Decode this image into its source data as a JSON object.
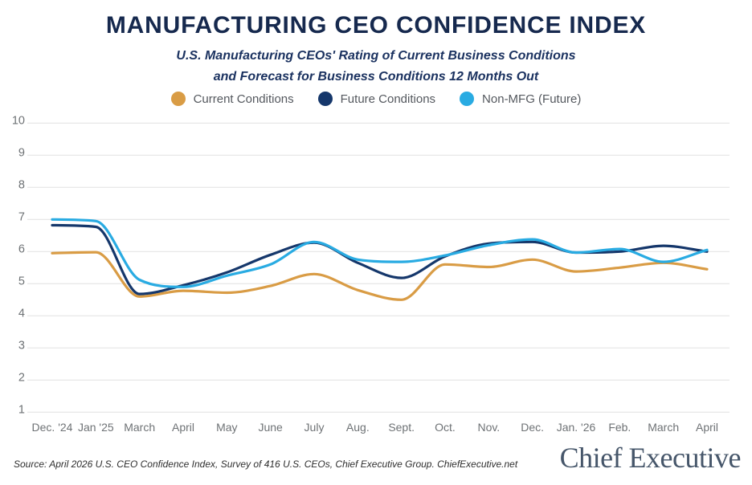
{
  "header": {
    "title": "MANUFACTURING CEO CONFIDENCE INDEX",
    "subtitle_line1": "U.S. Manufacturing CEOs' Rating of Current Business Conditions",
    "subtitle_line2": "and Forecast for Business Conditions 12 Months Out"
  },
  "legend": [
    {
      "label": "Current Conditions",
      "color": "#D99C45",
      "swatch": "orange-dot"
    },
    {
      "label": "Future Conditions",
      "color": "#15376B",
      "swatch": "navy-dot"
    },
    {
      "label": "Non-MFG (Future)",
      "color": "#29ABE2",
      "swatch": "lightblue-dot"
    }
  ],
  "chart_data": {
    "type": "line",
    "title": "Manufacturing CEO Confidence Index",
    "categories": [
      "Dec. '24",
      "Jan '25",
      "March",
      "April",
      "May",
      "June",
      "July",
      "Aug.",
      "Sept.",
      "Oct.",
      "Nov.",
      "Dec.",
      "Jan. '26",
      "Feb.",
      "March",
      "April"
    ],
    "series": [
      {
        "name": "Current Conditions",
        "color": "#D99C45",
        "values": [
          5.95,
          5.98,
          4.6,
          4.78,
          4.72,
          4.93,
          5.3,
          4.8,
          4.5,
          5.6,
          5.52,
          5.75,
          5.38,
          5.5,
          5.65,
          5.45
        ]
      },
      {
        "name": "Future Conditions",
        "color": "#15376B",
        "values": [
          6.82,
          6.77,
          4.68,
          4.95,
          5.35,
          5.9,
          6.28,
          5.65,
          5.18,
          5.85,
          6.25,
          6.3,
          5.97,
          6.0,
          6.18,
          6.0
        ]
      },
      {
        "name": "Non-MFG (Future)",
        "color": "#29ABE2",
        "values": [
          7.0,
          6.95,
          5.12,
          4.9,
          5.25,
          5.6,
          6.3,
          5.75,
          5.68,
          5.88,
          6.2,
          6.38,
          5.97,
          6.08,
          5.68,
          6.05
        ]
      }
    ],
    "ylim": [
      1,
      10
    ],
    "ytick_step": 1,
    "yticks": [
      10,
      9,
      8,
      7,
      6,
      5,
      4,
      3,
      2,
      1
    ],
    "grid": "horizontal",
    "legend_position": "top",
    "axis_text_color": "#6e7275",
    "gridline_color": "#e1e1e1"
  },
  "footer": {
    "source": "Source: April 2026 U.S. CEO Confidence Index, Survey of 416 U.S. CEOs, Chief Executive Group. ChiefExecutive.net",
    "brand": "Chief Executive"
  }
}
